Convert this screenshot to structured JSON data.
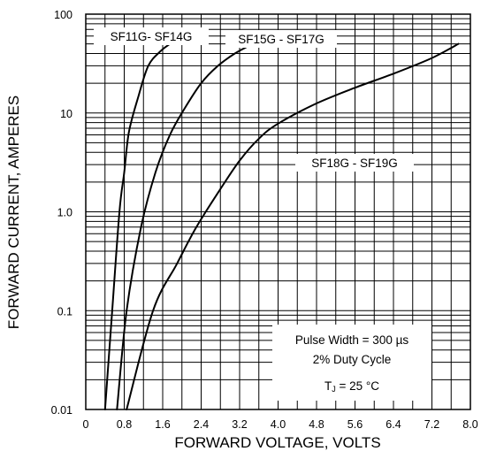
{
  "chart_data": {
    "type": "line",
    "xlabel": "FORWARD VOLTAGE, VOLTS",
    "ylabel": "FORWARD CURRENT, AMPERES",
    "x_scale": "linear",
    "y_scale": "log",
    "xlim": [
      0,
      8.0
    ],
    "ylim": [
      0.01,
      100
    ],
    "x_ticks": [
      "0",
      "0.8",
      "1.6",
      "2.4",
      "3.2",
      "4.0",
      "4.8",
      "5.6",
      "6.4",
      "7.2",
      "8.0"
    ],
    "x_tick_values": [
      0,
      0.8,
      1.6,
      2.4,
      3.2,
      4.0,
      4.8,
      5.6,
      6.4,
      7.2,
      8.0
    ],
    "y_ticks": [
      "0.01",
      "0.1",
      "1.0",
      "10",
      "100"
    ],
    "y_tick_values": [
      0.01,
      0.1,
      1,
      10,
      100
    ],
    "grid": true,
    "series": [
      {
        "name": "SF11G- SF14G",
        "points": [
          [
            0.4,
            0.01
          ],
          [
            0.55,
            0.1
          ],
          [
            0.7,
            1.0
          ],
          [
            0.8,
            2.5
          ],
          [
            0.9,
            6.5
          ],
          [
            1.1,
            15
          ],
          [
            1.3,
            30
          ],
          [
            1.55,
            42
          ],
          [
            1.75,
            50
          ]
        ]
      },
      {
        "name": "SF15G - SF17G",
        "points": [
          [
            0.65,
            0.01
          ],
          [
            0.85,
            0.1
          ],
          [
            1.15,
            0.7
          ],
          [
            1.45,
            2.5
          ],
          [
            1.75,
            6
          ],
          [
            2.05,
            11
          ],
          [
            2.4,
            20
          ],
          [
            2.75,
            30
          ],
          [
            3.1,
            40
          ],
          [
            3.4,
            48
          ]
        ]
      },
      {
        "name": "SF18G - SF19G",
        "points": [
          [
            0.85,
            0.01
          ],
          [
            1.4,
            0.1
          ],
          [
            1.9,
            0.3
          ],
          [
            2.3,
            0.7
          ],
          [
            2.8,
            1.7
          ],
          [
            3.2,
            3.3
          ],
          [
            3.6,
            5.5
          ],
          [
            4.0,
            7.8
          ],
          [
            4.8,
            12.5
          ],
          [
            5.6,
            18
          ],
          [
            6.4,
            25
          ],
          [
            7.2,
            36
          ],
          [
            7.75,
            50
          ]
        ]
      }
    ],
    "annotations": {
      "pulse_width": "Pulse Width = 300 µs",
      "duty_cycle": "2% Duty Cycle",
      "tj_prefix": "T",
      "tj_sub": "J",
      "tj_suffix": " = 25 °C"
    }
  }
}
